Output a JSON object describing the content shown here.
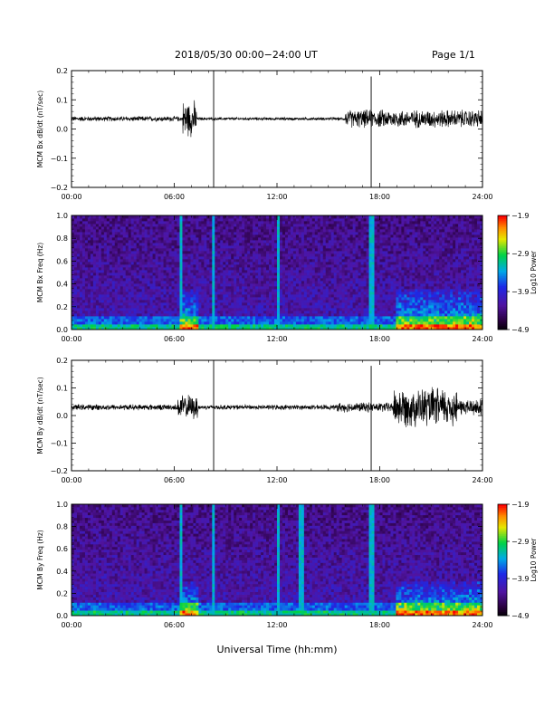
{
  "header": {
    "title": "2018/05/30   00:00−24:00 UT",
    "page": "Page 1/1"
  },
  "xlabel": "Universal Time (hh:mm)",
  "chart_data": [
    {
      "type": "line",
      "ylabel": "MCM Bx dB/dt (nT/sec)",
      "x_range_hours": [
        0,
        24
      ],
      "xticks": [
        "00:00",
        "06:00",
        "12:00",
        "18:00",
        "24:00"
      ],
      "ylim": [
        -0.2,
        0.2
      ],
      "yticks": [
        "−0.2",
        "−0.1",
        "0.0",
        "0.1",
        "0.2"
      ],
      "baseline": 0.035,
      "activity": [
        {
          "start": 0,
          "end": 6.0,
          "amp": 0.01
        },
        {
          "start": 6.5,
          "end": 7.3,
          "amp": 0.07
        },
        {
          "start": 7.3,
          "end": 16.0,
          "amp": 0.006
        },
        {
          "start": 16.0,
          "end": 24.0,
          "amp": 0.035
        }
      ],
      "spikes": [
        {
          "hour": 8.3,
          "min": -0.2,
          "max": 0.2
        },
        {
          "hour": 17.5,
          "min": -0.2,
          "max": 0.18
        }
      ],
      "grid": false
    },
    {
      "type": "heatmap",
      "ylabel": "MCM Bx Freq (Hz)",
      "x_range_hours": [
        0,
        24
      ],
      "xticks": [
        "00:00",
        "06:00",
        "12:00",
        "18:00",
        "24:00"
      ],
      "ylim": [
        0.0,
        1.0
      ],
      "yticks": [
        "0.0",
        "0.2",
        "0.4",
        "0.6",
        "0.8",
        "1.0"
      ],
      "colorbar": {
        "label": "Log10 Power",
        "min": -4.9,
        "max": -1.9,
        "ticks": [
          "−1.9",
          "−2.9",
          "−3.9",
          "−4.9"
        ]
      },
      "vertical_lines_hours": [
        6.4,
        8.3,
        12.05,
        17.5
      ],
      "active_intervals": [
        {
          "start": 6.3,
          "end": 7.4,
          "top_freq": 0.35
        },
        {
          "start": 19.0,
          "end": 24.0,
          "top_freq": 0.35
        }
      ]
    },
    {
      "type": "line",
      "ylabel": "MCM By dB/dt (nT/sec)",
      "x_range_hours": [
        0,
        24
      ],
      "xticks": [
        "00:00",
        "06:00",
        "12:00",
        "18:00",
        "24:00"
      ],
      "ylim": [
        -0.2,
        0.2
      ],
      "yticks": [
        "−0.2",
        "−0.1",
        "0.0",
        "0.1",
        "0.2"
      ],
      "baseline": 0.03,
      "activity": [
        {
          "start": 0,
          "end": 6.2,
          "amp": 0.012
        },
        {
          "start": 6.2,
          "end": 7.4,
          "amp": 0.05
        },
        {
          "start": 7.4,
          "end": 15.5,
          "amp": 0.01
        },
        {
          "start": 15.5,
          "end": 18.8,
          "amp": 0.02
        },
        {
          "start": 18.8,
          "end": 22.5,
          "amp": 0.08
        },
        {
          "start": 22.5,
          "end": 24.0,
          "amp": 0.035
        }
      ],
      "spikes": [
        {
          "hour": 8.3,
          "min": -0.2,
          "max": 0.2
        },
        {
          "hour": 17.5,
          "min": -0.2,
          "max": 0.18
        }
      ],
      "grid": false
    },
    {
      "type": "heatmap",
      "ylabel": "MCM By Freq (Hz)",
      "x_range_hours": [
        0,
        24
      ],
      "xticks": [
        "00:00",
        "06:00",
        "12:00",
        "18:00",
        "24:00"
      ],
      "ylim": [
        0.0,
        1.0
      ],
      "yticks": [
        "0.0",
        "0.2",
        "0.4",
        "0.6",
        "0.8",
        "1.0"
      ],
      "colorbar": {
        "label": "Log10 Power",
        "min": -4.9,
        "max": -1.9,
        "ticks": [
          "−1.9",
          "−2.9",
          "−3.9",
          "−4.9"
        ]
      },
      "vertical_lines_hours": [
        6.4,
        8.3,
        12.05,
        13.4,
        17.5
      ],
      "active_intervals": [
        {
          "start": 6.3,
          "end": 7.4,
          "top_freq": 0.3
        },
        {
          "start": 19.0,
          "end": 24.0,
          "top_freq": 0.3
        }
      ]
    }
  ]
}
